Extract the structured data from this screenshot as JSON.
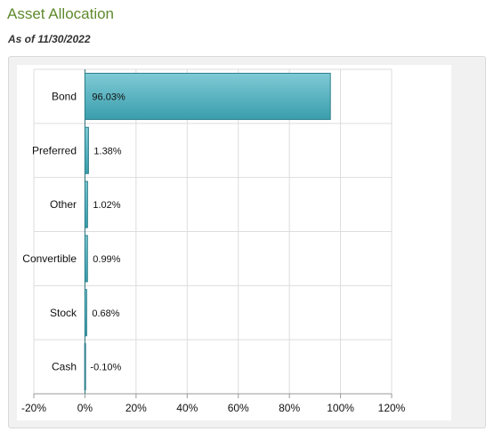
{
  "header": {
    "title": "Asset Allocation",
    "as_of": "As of 11/30/2022"
  },
  "chart_data": {
    "type": "bar",
    "orientation": "horizontal",
    "categories": [
      "Bond",
      "Preferred",
      "Other",
      "Convertible",
      "Stock",
      "Cash"
    ],
    "values": [
      96.03,
      1.38,
      1.02,
      0.99,
      0.68,
      -0.1
    ],
    "data_labels": [
      "96.03%",
      "1.38%",
      "1.02%",
      "0.99%",
      "0.68%",
      "-0.10%"
    ],
    "xlim": [
      -20,
      120
    ],
    "x_ticks": [
      -20,
      0,
      20,
      40,
      60,
      80,
      100,
      120
    ],
    "x_tick_labels": [
      "-20%",
      "0%",
      "20%",
      "40%",
      "60%",
      "80%",
      "100%",
      "120%"
    ],
    "grid": true,
    "legend": "none",
    "colors": {
      "bar_top": "#7fcad6",
      "bar_bottom": "#3a9eac",
      "bar_border": "#2a7f8c",
      "grid": "#dddddd",
      "axis": "#999999"
    }
  }
}
